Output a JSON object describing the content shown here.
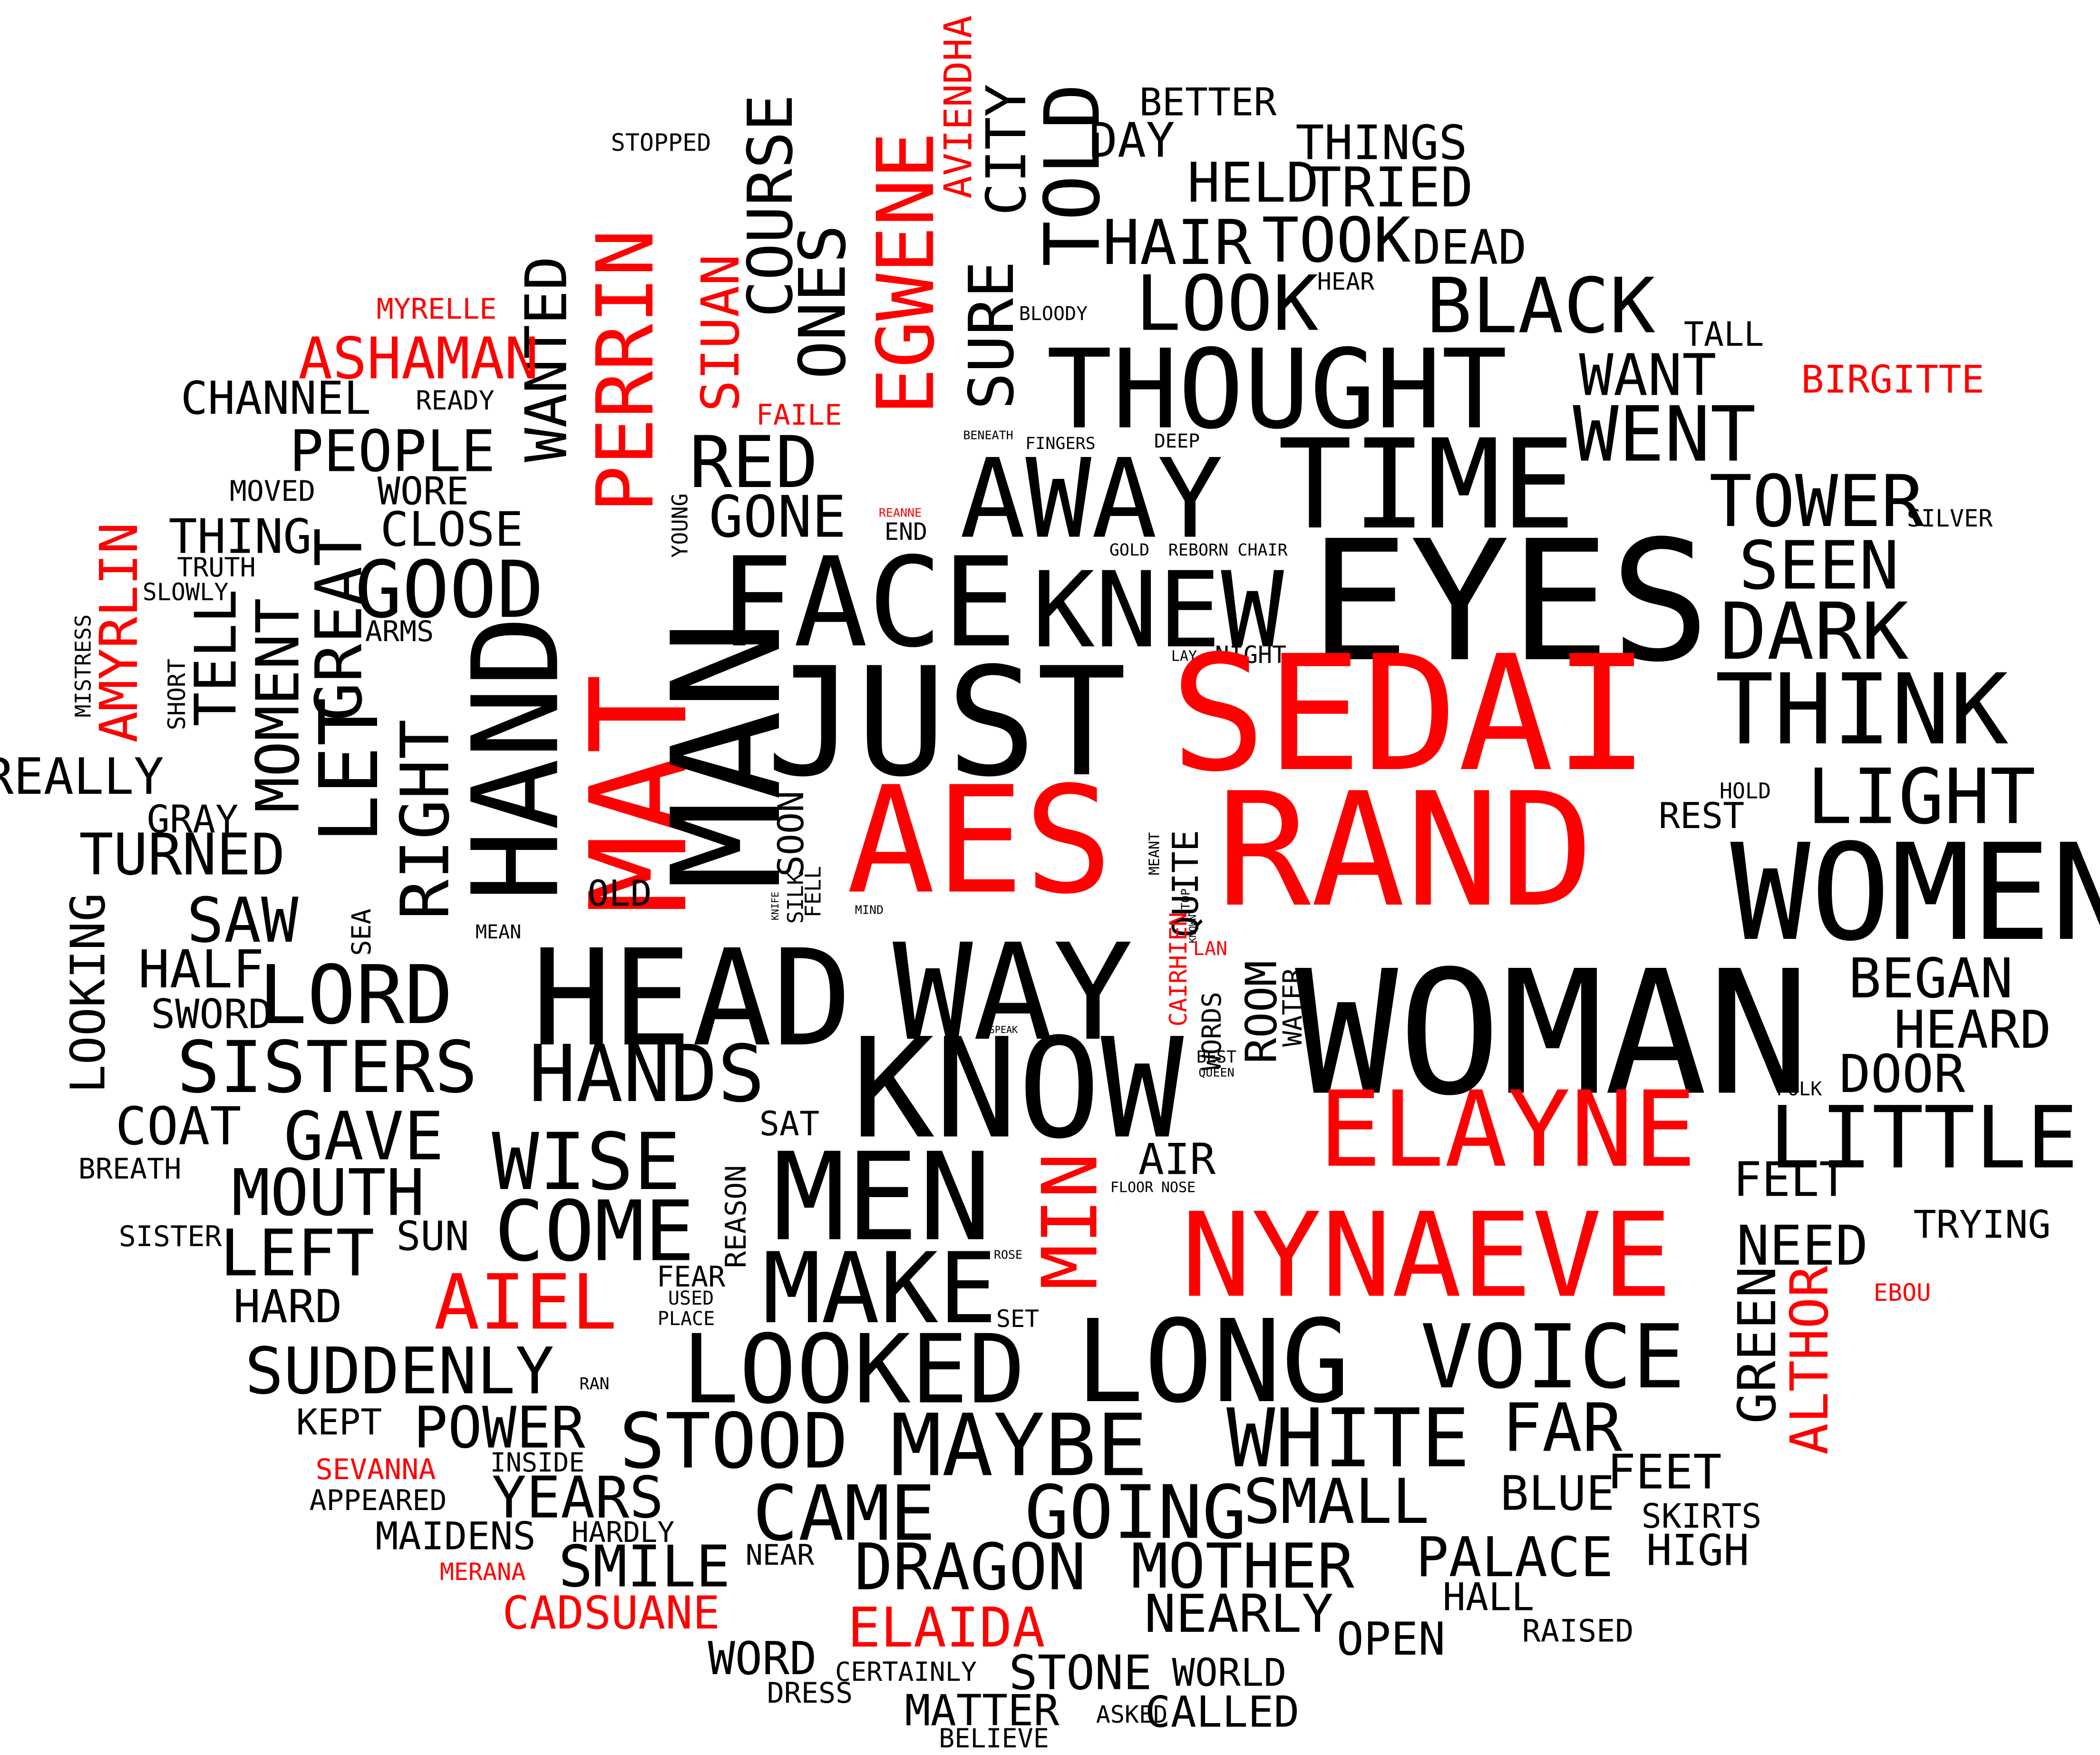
{
  "colors": {
    "background": "#ffffff",
    "normal": "#000000",
    "highlight": "#ff0000"
  },
  "words": [
    {
      "text": "STOPPED",
      "red": false
    },
    {
      "text": "BETTER",
      "red": false
    },
    {
      "text": "DAY",
      "red": false
    },
    {
      "text": "THINGS",
      "red": false
    },
    {
      "text": "HELD",
      "red": false
    },
    {
      "text": "TRIED",
      "red": false
    },
    {
      "text": "AVIENDHA",
      "red": true
    },
    {
      "text": "CITY",
      "red": false
    },
    {
      "text": "TOLD",
      "red": false
    },
    {
      "text": "COURSE",
      "red": false
    },
    {
      "text": "ONES",
      "red": false
    },
    {
      "text": "EGWENE",
      "red": true
    },
    {
      "text": "SURE",
      "red": false
    },
    {
      "text": "SIUAN",
      "red": true
    },
    {
      "text": "PERRIN",
      "red": true
    },
    {
      "text": "WANTED",
      "red": false
    },
    {
      "text": "HAIR",
      "red": false
    },
    {
      "text": "TOOK",
      "red": false
    },
    {
      "text": "DEAD",
      "red": false
    },
    {
      "text": "HEAR",
      "red": false
    },
    {
      "text": "LOOK",
      "red": false
    },
    {
      "text": "BLACK",
      "red": false
    },
    {
      "text": "BLOODY",
      "red": false
    },
    {
      "text": "MYRELLE",
      "red": true
    },
    {
      "text": "ASHAMAN",
      "red": true
    },
    {
      "text": "CHANNEL",
      "red": false
    },
    {
      "text": "READY",
      "red": false
    },
    {
      "text": "FAILE",
      "red": true
    },
    {
      "text": "TALL",
      "red": false
    },
    {
      "text": "WANT",
      "red": false
    },
    {
      "text": "BIRGITTE",
      "red": true
    },
    {
      "text": "THOUGHT",
      "red": false
    },
    {
      "text": "WENT",
      "red": false
    },
    {
      "text": "PEOPLE",
      "red": false
    },
    {
      "text": "RED",
      "red": false
    },
    {
      "text": "BENEATH",
      "red": false
    },
    {
      "text": "FINGERS",
      "red": false
    },
    {
      "text": "DEEP",
      "red": false
    },
    {
      "text": "TIME",
      "red": false
    },
    {
      "text": "MOVED",
      "red": false
    },
    {
      "text": "WORE",
      "red": false
    },
    {
      "text": "YOUNG",
      "red": false
    },
    {
      "text": "GONE",
      "red": false
    },
    {
      "text": "AWAY",
      "red": false
    },
    {
      "text": "TOWER",
      "red": false
    },
    {
      "text": "REANNE",
      "red": true
    },
    {
      "text": "END",
      "red": false
    },
    {
      "text": "SILVER",
      "red": false
    },
    {
      "text": "THING",
      "red": false
    },
    {
      "text": "CLOSE",
      "red": false
    },
    {
      "text": "GOLD",
      "red": false
    },
    {
      "text": "REBORN",
      "red": false
    },
    {
      "text": "CHAIR",
      "red": false
    },
    {
      "text": "SEEN",
      "red": false
    },
    {
      "text": "AMYRLIN",
      "red": true
    },
    {
      "text": "TRUTH",
      "red": false
    },
    {
      "text": "SLOWLY",
      "red": false
    },
    {
      "text": "GOOD",
      "red": false
    },
    {
      "text": "FACE",
      "red": false
    },
    {
      "text": "KNEW",
      "red": false
    },
    {
      "text": "EYES",
      "red": false
    },
    {
      "text": "DARK",
      "red": false
    },
    {
      "text": "MISTRESS",
      "red": false
    },
    {
      "text": "TELL",
      "red": false
    },
    {
      "text": "GREAT",
      "red": false
    },
    {
      "text": "ARMS",
      "red": false
    },
    {
      "text": "SHORT",
      "red": false
    },
    {
      "text": "MOMENT",
      "red": false
    },
    {
      "text": "LAY",
      "red": false
    },
    {
      "text": "NIGHT",
      "red": false
    },
    {
      "text": "THINK",
      "red": false
    },
    {
      "text": "LET",
      "red": false
    },
    {
      "text": "HAND",
      "red": false
    },
    {
      "text": "JUST",
      "red": false
    },
    {
      "text": "SEDAI",
      "red": true
    },
    {
      "text": "REALLY",
      "red": false
    },
    {
      "text": "MAT",
      "red": true
    },
    {
      "text": "MAN",
      "red": false
    },
    {
      "text": "HOLD",
      "red": false
    },
    {
      "text": "LIGHT",
      "red": false
    },
    {
      "text": "GRAY",
      "red": false
    },
    {
      "text": "RIGHT",
      "red": false
    },
    {
      "text": "SOON",
      "red": false
    },
    {
      "text": "REST",
      "red": false
    },
    {
      "text": "TURNED",
      "red": false
    },
    {
      "text": "AES",
      "red": true
    },
    {
      "text": "RAND",
      "red": true
    },
    {
      "text": "WOMEN",
      "red": false
    },
    {
      "text": "MEANT",
      "red": false
    },
    {
      "text": "OLD",
      "red": false
    },
    {
      "text": "QUITE",
      "red": false
    },
    {
      "text": "SAW",
      "red": false
    },
    {
      "text": "LOOKING",
      "red": false
    },
    {
      "text": "SEA",
      "red": false
    },
    {
      "text": "KNIFE",
      "red": false
    },
    {
      "text": "SILK",
      "red": false
    },
    {
      "text": "FELL",
      "red": false
    },
    {
      "text": "STOP",
      "red": false
    },
    {
      "text": "MEAN",
      "red": false
    },
    {
      "text": "MIND",
      "red": false
    },
    {
      "text": "CAIRHIEN",
      "red": true
    },
    {
      "text": "KNOWN",
      "red": false
    },
    {
      "text": "HALF",
      "red": false
    },
    {
      "text": "LAN",
      "red": true
    },
    {
      "text": "HEAD",
      "red": false
    },
    {
      "text": "WAY",
      "red": false
    },
    {
      "text": "WOMAN",
      "red": false
    },
    {
      "text": "BEGAN",
      "red": false
    },
    {
      "text": "LORD",
      "red": false
    },
    {
      "text": "ROOM",
      "red": false
    },
    {
      "text": "WATER",
      "red": false
    },
    {
      "text": "WORDS",
      "red": false
    },
    {
      "text": "SWORD",
      "red": false
    },
    {
      "text": "HEARD",
      "red": false
    },
    {
      "text": "SPEAK",
      "red": false
    },
    {
      "text": "SISTERS",
      "red": false
    },
    {
      "text": "HANDS",
      "red": false
    },
    {
      "text": "BEST",
      "red": false
    },
    {
      "text": "QUEEN",
      "red": false
    },
    {
      "text": "DOOR",
      "red": false
    },
    {
      "text": "KNOW",
      "red": false
    },
    {
      "text": "FOLK",
      "red": false
    },
    {
      "text": "COAT",
      "red": false
    },
    {
      "text": "GAVE",
      "red": false
    },
    {
      "text": "ELAYNE",
      "red": true
    },
    {
      "text": "LITTLE",
      "red": false
    },
    {
      "text": "SAT",
      "red": false
    },
    {
      "text": "WISE",
      "red": false
    },
    {
      "text": "BREATH",
      "red": false
    },
    {
      "text": "AIR",
      "red": false
    },
    {
      "text": "MEN",
      "red": false
    },
    {
      "text": "MOUTH",
      "red": false
    },
    {
      "text": "MIN",
      "red": true
    },
    {
      "text": "FLOOR",
      "red": false
    },
    {
      "text": "NOSE",
      "red": false
    },
    {
      "text": "FELT",
      "red": false
    },
    {
      "text": "REASON",
      "red": false
    },
    {
      "text": "TRYING",
      "red": false
    },
    {
      "text": "SISTER",
      "red": false
    },
    {
      "text": "SUN",
      "red": false
    },
    {
      "text": "COME",
      "red": false
    },
    {
      "text": "NEED",
      "red": false
    },
    {
      "text": "LEFT",
      "red": false
    },
    {
      "text": "ROSE",
      "red": false
    },
    {
      "text": "NYNAEVE",
      "red": true
    },
    {
      "text": "FEAR",
      "red": false
    },
    {
      "text": "HARD",
      "red": false
    },
    {
      "text": "AIEL",
      "red": true
    },
    {
      "text": "MAKE",
      "red": false
    },
    {
      "text": "EBOU",
      "red": true
    },
    {
      "text": "USED",
      "red": false
    },
    {
      "text": "GREEN",
      "red": false
    },
    {
      "text": "PLACE",
      "red": false
    },
    {
      "text": "SET",
      "red": false
    },
    {
      "text": "ALTHOR",
      "red": true
    },
    {
      "text": "LONG",
      "red": false
    },
    {
      "text": "VOICE",
      "red": false
    },
    {
      "text": "SUDDENLY",
      "red": false
    },
    {
      "text": "RAN",
      "red": false
    },
    {
      "text": "LOOKED",
      "red": false
    },
    {
      "text": "KEPT",
      "red": false
    },
    {
      "text": "POWER",
      "red": false
    },
    {
      "text": "STOOD",
      "red": false
    },
    {
      "text": "MAYBE",
      "red": false
    },
    {
      "text": "WHITE",
      "red": false
    },
    {
      "text": "FAR",
      "red": false
    },
    {
      "text": "SEVANNA",
      "red": true
    },
    {
      "text": "INSIDE",
      "red": false
    },
    {
      "text": "APPEARED",
      "red": false
    },
    {
      "text": "YEARS",
      "red": false
    },
    {
      "text": "FEET",
      "red": false
    },
    {
      "text": "BLUE",
      "red": false
    },
    {
      "text": "SMALL",
      "red": false
    },
    {
      "text": "CAME",
      "red": false
    },
    {
      "text": "GOING",
      "red": false
    },
    {
      "text": "SKIRTS",
      "red": false
    },
    {
      "text": "MAIDENS",
      "red": false
    },
    {
      "text": "HARDLY",
      "red": false
    },
    {
      "text": "HIGH",
      "red": false
    },
    {
      "text": "NEAR",
      "red": false
    },
    {
      "text": "PALACE",
      "red": false
    },
    {
      "text": "MOTHER",
      "red": false
    },
    {
      "text": "SMILE",
      "red": false
    },
    {
      "text": "DRAGON",
      "red": false
    },
    {
      "text": "MERANA",
      "red": true
    },
    {
      "text": "HALL",
      "red": false
    },
    {
      "text": "CADSUANE",
      "red": true
    },
    {
      "text": "ELAIDA",
      "red": true
    },
    {
      "text": "NEARLY",
      "red": false
    },
    {
      "text": "RAISED",
      "red": false
    },
    {
      "text": "OPEN",
      "red": false
    },
    {
      "text": "WORD",
      "red": false
    },
    {
      "text": "CERTAINLY",
      "red": false
    },
    {
      "text": "STONE",
      "red": false
    },
    {
      "text": "WORLD",
      "red": false
    },
    {
      "text": "DRESS",
      "red": false
    },
    {
      "text": "MATTER",
      "red": false
    },
    {
      "text": "ASKED",
      "red": false
    },
    {
      "text": "CALLED",
      "red": false
    },
    {
      "text": "BELIEVE",
      "red": false
    }
  ]
}
